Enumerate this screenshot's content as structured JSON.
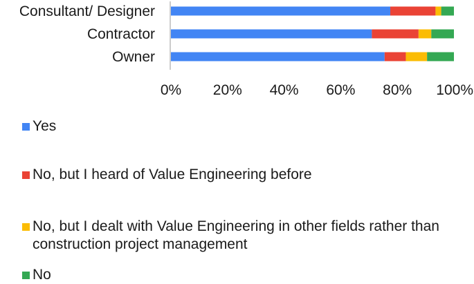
{
  "chart_data": {
    "type": "bar",
    "orientation": "horizontal",
    "stacked": true,
    "normalized": true,
    "categories": [
      "Consultant/ Designer",
      "Contractor",
      "Owner"
    ],
    "series": [
      {
        "name": "Yes",
        "color": "#4285F4",
        "values": [
          77.5,
          71,
          75.5
        ]
      },
      {
        "name": "No, but I heard of Value Engineering before",
        "color": "#EA4335",
        "values": [
          16,
          16.5,
          7.5
        ]
      },
      {
        "name": "No, but I dealt with Value Engineering in other fields rather than construction project management",
        "color": "#FBBC04",
        "values": [
          2,
          4.5,
          7.5
        ]
      },
      {
        "name": "No",
        "color": "#34A853",
        "values": [
          4.5,
          8,
          9.5
        ]
      }
    ],
    "xlim": [
      0,
      100
    ],
    "xticks": [
      "0%",
      "20%",
      "40%",
      "60%",
      "80%",
      "100%"
    ],
    "grid": false,
    "legend_position": "bottom"
  }
}
